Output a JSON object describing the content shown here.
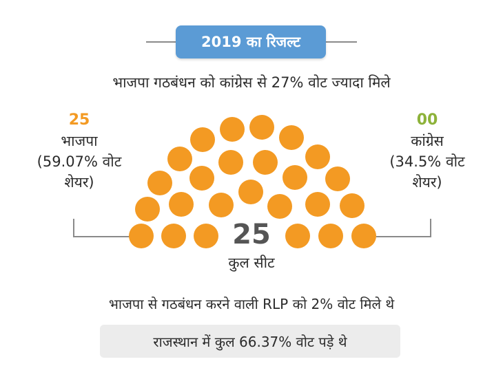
{
  "header": {
    "badge": "2019 का रिजल्ट",
    "subtitle": "भाजपा गठबंधन को कांग्रेस से 27% वोट ज्यादा मिले"
  },
  "colors": {
    "badge": "#5b9bd5",
    "bjp": "#f39a23",
    "congress": "#8db23a",
    "total_number": "#555555"
  },
  "left_party": {
    "seats": "25",
    "name": "भाजपा",
    "share_line1": "(59.07% वोट",
    "share_line2": "शेयर)"
  },
  "right_party": {
    "seats": "00",
    "name": "कांग्रेस",
    "share_line1": "(34.5% वोट",
    "share_line2": "शेयर)"
  },
  "total": {
    "number": "25",
    "label": "कुल सीट"
  },
  "footer": {
    "note": "भाजपा से गठबंधन करने वाली RLP को 2% वोट मिले थे",
    "box": "राजस्थान में कुल 66.37% वोट पड़े थे"
  },
  "chart_data": {
    "type": "parliament",
    "total_seats": 25,
    "series": [
      {
        "name": "भाजपा",
        "seats": 25,
        "vote_share": 59.07,
        "color": "#f39a23"
      },
      {
        "name": "कांग्रेस",
        "seats": 0,
        "vote_share": 34.5,
        "color": "#8db23a"
      }
    ]
  }
}
